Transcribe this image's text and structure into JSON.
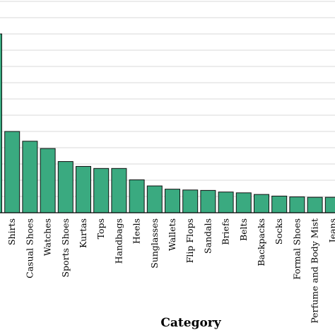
{
  "chart_data": {
    "type": "bar",
    "title": "",
    "xlabel": "Category",
    "ylabel": "",
    "categories": [
      "",
      "Shirts",
      "Casual Shoes",
      "Watches",
      "Sports Shoes",
      "Kurtas",
      "Tops",
      "Handbags",
      "Heels",
      "Sunglasses",
      "Wallets",
      "Flip Flops",
      "Sandals",
      "Briefs",
      "Belts",
      "Backpacks",
      "Socks",
      "Formal Shoes",
      "Perfume and Body Mist",
      "Jeans"
    ],
    "values": [
      2200,
      1000,
      880,
      790,
      630,
      570,
      545,
      545,
      405,
      330,
      290,
      280,
      275,
      255,
      245,
      225,
      205,
      195,
      190,
      190
    ],
    "ylim": [
      0,
      2600
    ],
    "grid": true,
    "colors": {
      "bar": "#3aaa80",
      "bar_edge": "#111111",
      "grid": "#d9d9d9",
      "axis": "#000000"
    }
  }
}
